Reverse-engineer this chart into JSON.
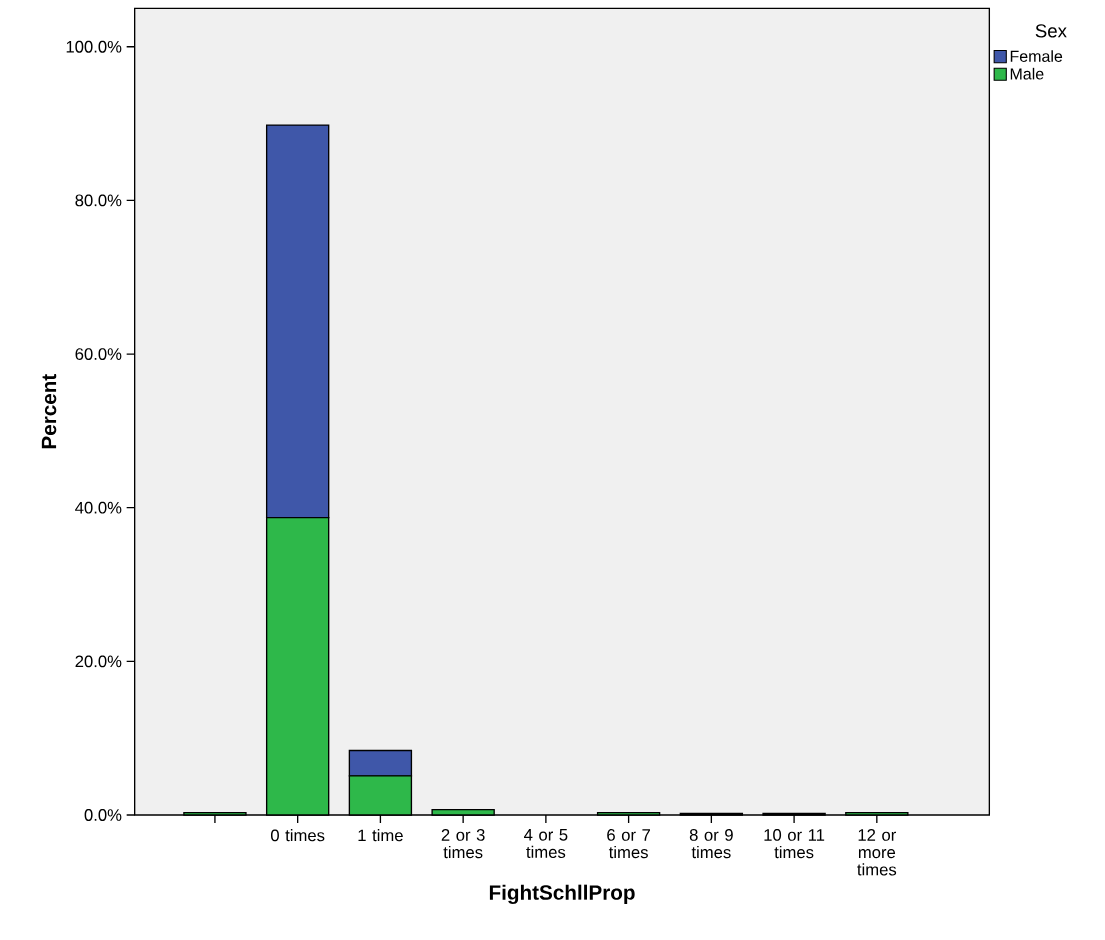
{
  "chart_data": {
    "type": "bar",
    "stacked": true,
    "xlabel": "FightSchllProp",
    "ylabel": "Percent",
    "legend_title": "Sex",
    "legend": "top right",
    "categories": [
      null,
      "0 times",
      "1 time",
      "2 or 3 times",
      "4 or 5 times",
      "6 or 7 times",
      "8 or 9 times",
      "10 or 11 times",
      "12 or more times"
    ],
    "series": [
      {
        "name": "Male",
        "color": "#2eb84a",
        "values": [
          0.3,
          38.7,
          5.1,
          0.7,
          0,
          0.3,
          0.2,
          0.2,
          0.3
        ]
      },
      {
        "name": "Female",
        "color": "#3f57a9",
        "values": [
          0,
          51.1,
          3.3,
          0,
          0,
          0,
          0,
          0,
          0
        ]
      }
    ],
    "ylim": [
      0,
      105
    ],
    "yticks": [
      {
        "value": 0,
        "label": "0.0%"
      },
      {
        "value": 20,
        "label": "20.0%"
      },
      {
        "value": 40,
        "label": "40.0%"
      },
      {
        "value": 60,
        "label": "60.0%"
      },
      {
        "value": 80,
        "label": "80.0%"
      },
      {
        "value": 100,
        "label": "100.0%"
      }
    ]
  }
}
